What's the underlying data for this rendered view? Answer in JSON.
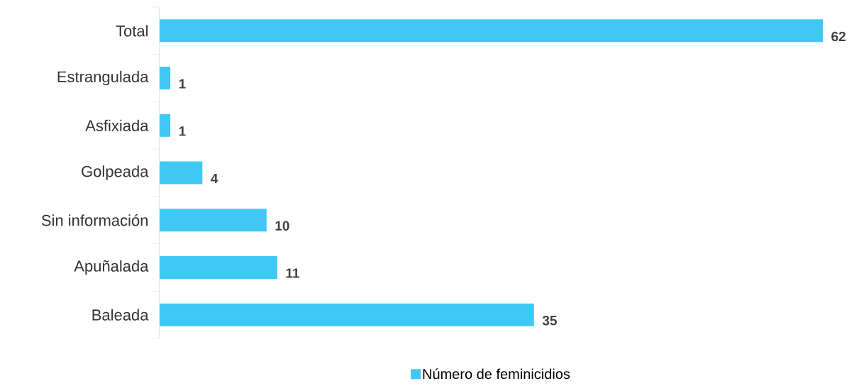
{
  "chart_data": {
    "type": "bar",
    "orientation": "horizontal",
    "categories": [
      "Total",
      "Estrangulada",
      "Asfixiada",
      "Golpeada",
      "Sin información",
      "Apuñalada",
      "Baleada"
    ],
    "series": [
      {
        "name": "Número de feminicidios",
        "color": "#40c8f4",
        "values": [
          62,
          1,
          1,
          4,
          10,
          11,
          35
        ]
      }
    ],
    "data_labels": true,
    "legend": "bottom"
  }
}
